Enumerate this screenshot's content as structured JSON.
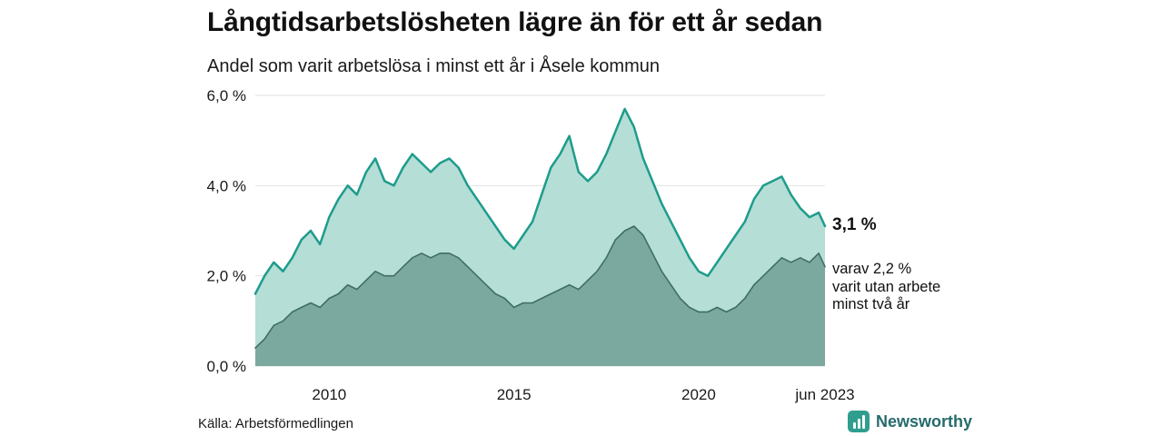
{
  "header": {
    "title": "Långtidsarbetslösheten lägre än för ett år sedan",
    "subtitle": "Andel som varit arbetslösa i minst ett år i Åsele kommun"
  },
  "annotations": {
    "latest_value": "3,1 %",
    "secondary_line1": "varav 2,2 %",
    "secondary_line2": "varit utan arbete",
    "secondary_line3": "minst två år"
  },
  "footer": {
    "source": "Källa: Arbetsförmedlingen",
    "brand": "Newsworthy"
  },
  "colors": {
    "total_fill": "#b5ded6",
    "total_line": "#1e9c8b",
    "subset_fill": "#7ba89f",
    "subset_line": "#3f6e65",
    "gridline": "#e2e2e2",
    "brand_teal": "#2f9e8f",
    "brand_text": "#266b6b"
  },
  "chart_data": {
    "type": "area",
    "title": "Långtidsarbetslösheten lägre än för ett år sedan",
    "subtitle": "Andel som varit arbetslösa i minst ett år i Åsele kommun",
    "xlabel": "",
    "ylabel": "",
    "xlim": [
      2008.0,
      2023.42
    ],
    "ylim": [
      0,
      6
    ],
    "grid": true,
    "legend_position": "end-labels",
    "y_ticks": [
      {
        "value": 0,
        "label": "0,0 %"
      },
      {
        "value": 2,
        "label": "2,0 %"
      },
      {
        "value": 4,
        "label": "4,0 %"
      },
      {
        "value": 6,
        "label": "6,0 %"
      }
    ],
    "x_ticks": [
      {
        "value": 2010,
        "label": "2010"
      },
      {
        "value": 2015,
        "label": "2015"
      },
      {
        "value": 2020,
        "label": "2020"
      },
      {
        "value": 2023.42,
        "label": "jun 2023"
      }
    ],
    "x": [
      2008,
      2008.25,
      2008.5,
      2008.75,
      2009,
      2009.25,
      2009.5,
      2009.75,
      2010,
      2010.25,
      2010.5,
      2010.75,
      2011,
      2011.25,
      2011.5,
      2011.75,
      2012,
      2012.25,
      2012.5,
      2012.75,
      2013,
      2013.25,
      2013.5,
      2013.75,
      2014,
      2014.25,
      2014.5,
      2014.75,
      2015,
      2015.25,
      2015.5,
      2015.75,
      2016,
      2016.25,
      2016.5,
      2016.75,
      2017,
      2017.25,
      2017.5,
      2017.75,
      2018,
      2018.25,
      2018.5,
      2018.75,
      2019,
      2019.25,
      2019.5,
      2019.75,
      2020,
      2020.25,
      2020.5,
      2020.75,
      2021,
      2021.25,
      2021.5,
      2021.75,
      2022,
      2022.25,
      2022.5,
      2022.75,
      2023,
      2023.25,
      2023.42
    ],
    "series": [
      {
        "name": "Arbetslösa minst ett år",
        "end_label": "3,1 %",
        "fill": "#b5ded6",
        "line": "#1e9c8b",
        "line_width": 2.5,
        "values": [
          1.6,
          2.0,
          2.3,
          2.1,
          2.4,
          2.8,
          3.0,
          2.7,
          3.3,
          3.7,
          4.0,
          3.8,
          4.3,
          4.6,
          4.1,
          4.0,
          4.4,
          4.7,
          4.5,
          4.3,
          4.5,
          4.6,
          4.4,
          4.0,
          3.7,
          3.4,
          3.1,
          2.8,
          2.6,
          2.9,
          3.2,
          3.8,
          4.4,
          4.7,
          5.1,
          4.3,
          4.1,
          4.3,
          4.7,
          5.2,
          5.7,
          5.3,
          4.6,
          4.1,
          3.6,
          3.2,
          2.8,
          2.4,
          2.1,
          2.0,
          2.3,
          2.6,
          2.9,
          3.2,
          3.7,
          4.0,
          4.1,
          4.2,
          3.8,
          3.5,
          3.3,
          3.4,
          3.1
        ]
      },
      {
        "name": "Arbetslösa minst två år",
        "end_label": "2,2 %",
        "fill": "#7ba89f",
        "line": "#3f6e65",
        "line_width": 1.6,
        "values": [
          0.4,
          0.6,
          0.9,
          1.0,
          1.2,
          1.3,
          1.4,
          1.3,
          1.5,
          1.6,
          1.8,
          1.7,
          1.9,
          2.1,
          2.0,
          2.0,
          2.2,
          2.4,
          2.5,
          2.4,
          2.5,
          2.5,
          2.4,
          2.2,
          2.0,
          1.8,
          1.6,
          1.5,
          1.3,
          1.4,
          1.4,
          1.5,
          1.6,
          1.7,
          1.8,
          1.7,
          1.9,
          2.1,
          2.4,
          2.8,
          3.0,
          3.1,
          2.9,
          2.5,
          2.1,
          1.8,
          1.5,
          1.3,
          1.2,
          1.2,
          1.3,
          1.2,
          1.3,
          1.5,
          1.8,
          2.0,
          2.2,
          2.4,
          2.3,
          2.4,
          2.3,
          2.5,
          2.2
        ]
      }
    ]
  }
}
